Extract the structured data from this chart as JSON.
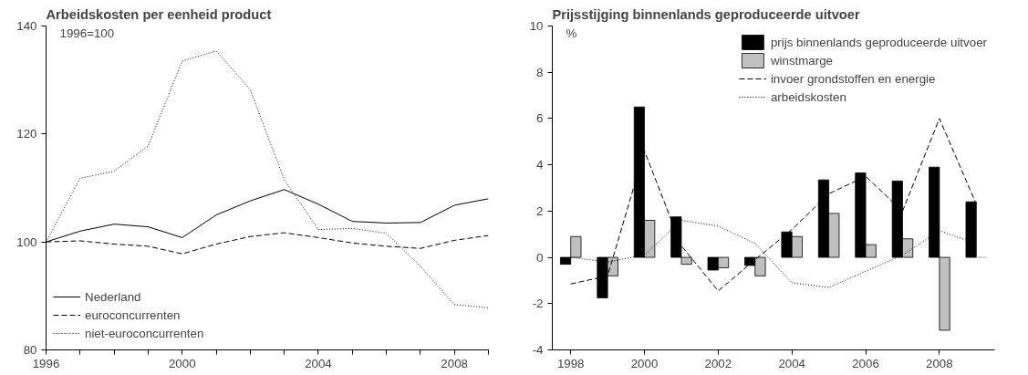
{
  "chart_data": [
    {
      "type": "line",
      "title": "Arbeidskosten per eenheid product",
      "annotations": [
        "1996=100"
      ],
      "x": [
        1996,
        1997,
        1998,
        1999,
        2000,
        2001,
        2002,
        2003,
        2004,
        2005,
        2006,
        2007,
        2008,
        2009
      ],
      "xlim": [
        1996,
        2009
      ],
      "xticks": [
        1996,
        {
          "value": 1997,
          "label": null
        },
        {
          "value": 1998,
          "label": null
        },
        {
          "value": 1999,
          "label": null
        },
        2000,
        {
          "value": 2001,
          "label": null
        },
        {
          "value": 2002,
          "label": null
        },
        {
          "value": 2003,
          "label": null
        },
        2004,
        {
          "value": 2005,
          "label": null
        },
        {
          "value": 2006,
          "label": null
        },
        {
          "value": 2007,
          "label": null
        },
        2008,
        {
          "value": 2009,
          "label": null
        }
      ],
      "ylim": [
        80,
        140
      ],
      "yticks": [
        80,
        100,
        120,
        140
      ],
      "grid": false,
      "legend": "bottom left",
      "series": [
        {
          "name": "Nederland",
          "color": "#000000",
          "line_style": "solid",
          "values": [
            100,
            102,
            103.3,
            102.8,
            100.8,
            105,
            107.6,
            109.7,
            107,
            103.8,
            103.5,
            103.6,
            106.8,
            108
          ]
        },
        {
          "name": "euroconcurrenten",
          "color": "#000000",
          "line_style": "dashed",
          "values": [
            100,
            100.2,
            99.6,
            99.2,
            97.8,
            99.6,
            101,
            101.7,
            100.8,
            99.8,
            99.2,
            98.8,
            100.3,
            101.2
          ]
        },
        {
          "name": "niet-euroconcurrenten",
          "color": "#000000",
          "line_style": "dotted",
          "values": [
            100,
            111.8,
            113.1,
            117.8,
            133.5,
            135.4,
            128.2,
            111.5,
            102.3,
            102.5,
            101.6,
            95.5,
            88.4,
            87.8
          ]
        }
      ]
    },
    {
      "type": "bar",
      "title": "Prijsstijging binnenlands geproduceerde uitvoer",
      "annotations": [
        "%"
      ],
      "x": [
        1998,
        1999,
        2000,
        2001,
        2002,
        2003,
        2004,
        2005,
        2006,
        2007,
        2008,
        2009
      ],
      "xlim": [
        1997.5,
        2009.5
      ],
      "xticks": [
        1998,
        2000,
        2002,
        2004,
        2006,
        2008
      ],
      "ylim": [
        -4,
        10
      ],
      "yticks": [
        -4,
        -2,
        0,
        2,
        4,
        6,
        8,
        10
      ],
      "grid": false,
      "legend": "top right",
      "series": [
        {
          "name": "prijs binnenlands geproduceerde uitvoer",
          "type": "bar",
          "color": "#000000",
          "values": [
            -0.3,
            -1.75,
            6.5,
            1.75,
            -0.55,
            -0.35,
            1.1,
            3.35,
            3.65,
            3.3,
            3.9,
            2.4
          ]
        },
        {
          "name": "winstmarge",
          "type": "bar",
          "color": "#c0c0c0",
          "values": [
            0.9,
            -0.8,
            1.6,
            -0.3,
            -0.45,
            -0.8,
            0.9,
            1.9,
            0.55,
            0.8,
            -3.15,
            0
          ]
        },
        {
          "name": "invoer grondstoffen en energie",
          "type": "line",
          "color": "#000000",
          "line_style": "dashed",
          "values": [
            -1.15,
            -0.8,
            4.6,
            0.5,
            -1.45,
            -0.1,
            1.2,
            2.75,
            3.5,
            2.0,
            6.0,
            2.3
          ]
        },
        {
          "name": "arbeidskosten",
          "type": "line",
          "color": "#000000",
          "line_style": "dotted",
          "values": [
            0,
            -0.2,
            0.1,
            1.6,
            1.35,
            0.6,
            -1.1,
            -1.3,
            -0.6,
            0.1,
            1.15,
            0.6
          ]
        }
      ]
    }
  ]
}
